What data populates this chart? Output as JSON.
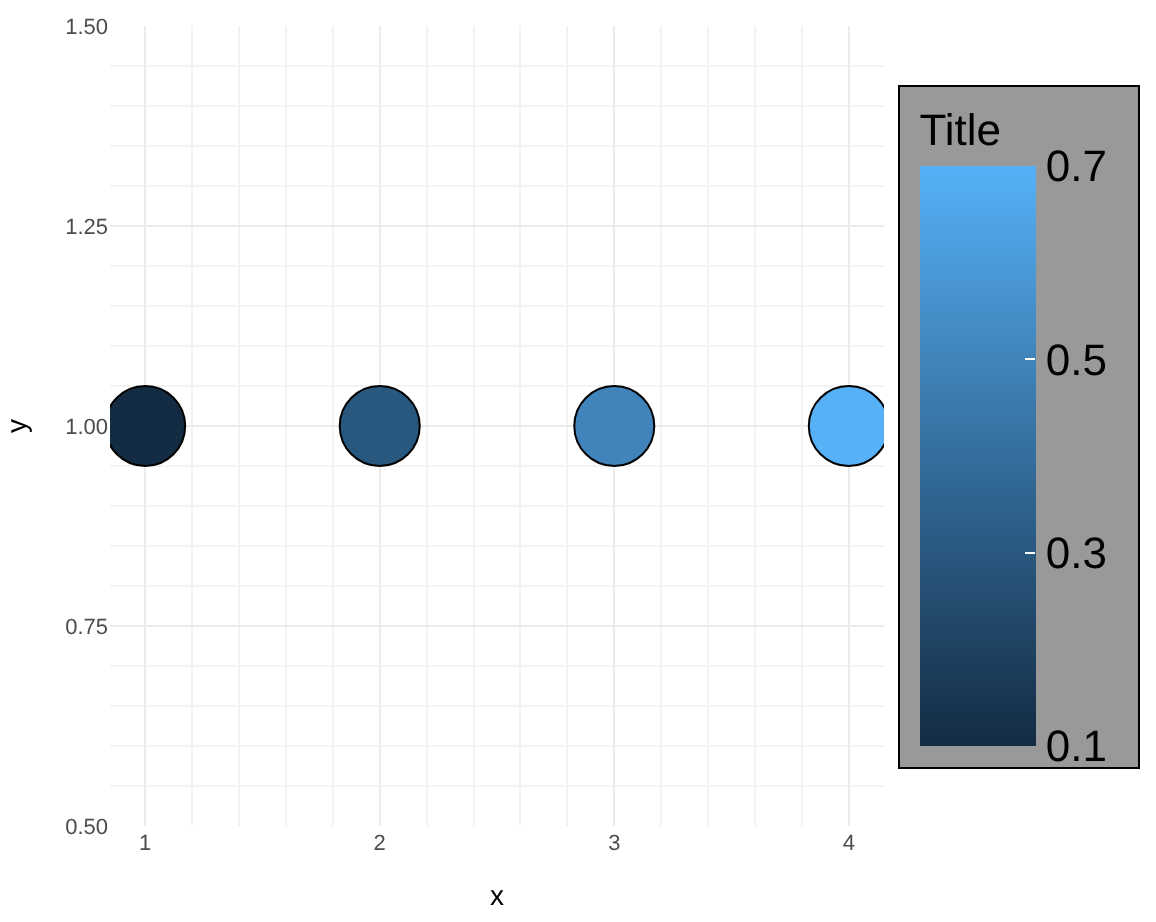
{
  "chart_data": {
    "type": "scatter",
    "xlabel": "x",
    "ylabel": "y",
    "clabel": "Title",
    "x": [
      1,
      2,
      3,
      4
    ],
    "series": [
      {
        "values": [
          1,
          1,
          1,
          1
        ],
        "cvalues": [
          0.1,
          0.3,
          0.5,
          0.7
        ]
      }
    ],
    "xlim": [
      0.85,
      4.15
    ],
    "xticks": [
      1,
      2,
      3,
      4
    ],
    "ylim": [
      0.5,
      1.5
    ],
    "yticks": [
      {
        "value": 0.5,
        "label": "0.50"
      },
      {
        "value": 0.75,
        "label": "0.75"
      },
      {
        "value": 1,
        "label": "1.00"
      },
      {
        "value": 1.25,
        "label": "1.25"
      },
      {
        "value": 1.5,
        "label": "1.50"
      }
    ],
    "clim": [
      0.1,
      0.7
    ],
    "cticks": [
      0.1,
      0.3,
      0.5,
      0.7
    ],
    "grid": true
  }
}
